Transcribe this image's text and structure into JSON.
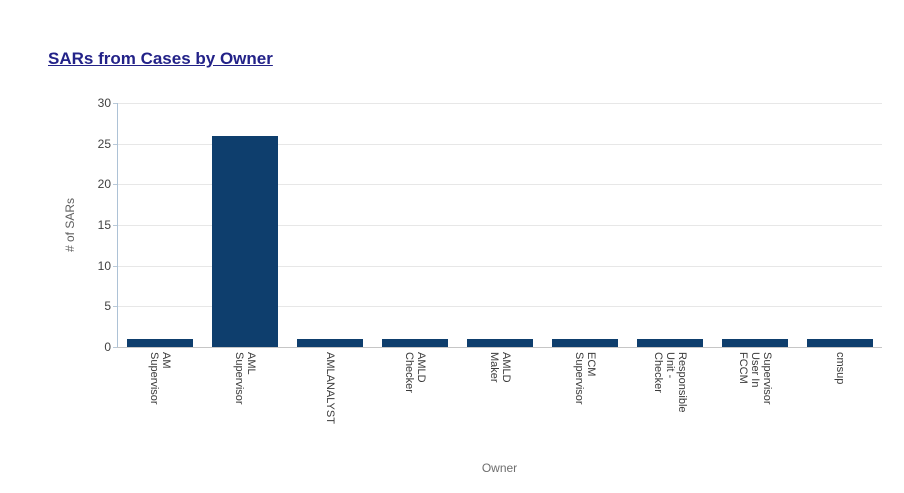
{
  "page": {
    "title_link": "SARs from Cases by Owner"
  },
  "chart_data": {
    "type": "bar",
    "title": "SARs from Cases by Owner",
    "xlabel": "Owner",
    "ylabel": "# of SARs",
    "ylim": [
      0,
      30
    ],
    "yticks": [
      0,
      5,
      10,
      15,
      20,
      25,
      30
    ],
    "grid": true,
    "legend": "none",
    "bar_color": "#0e3e6d",
    "categories": [
      "AM\nSupervisor",
      "AML\nSupervisor",
      "AMLANALYST",
      "AMLD\nChecker",
      "AMLD\nMaker",
      "ECM\nSupervisor",
      "Responsible\nUnit -\nChecker",
      "Supervisor\nUser In\nFCCM",
      "cmsup"
    ],
    "values": [
      1,
      26,
      1,
      1,
      1,
      1,
      1,
      1,
      1
    ]
  }
}
